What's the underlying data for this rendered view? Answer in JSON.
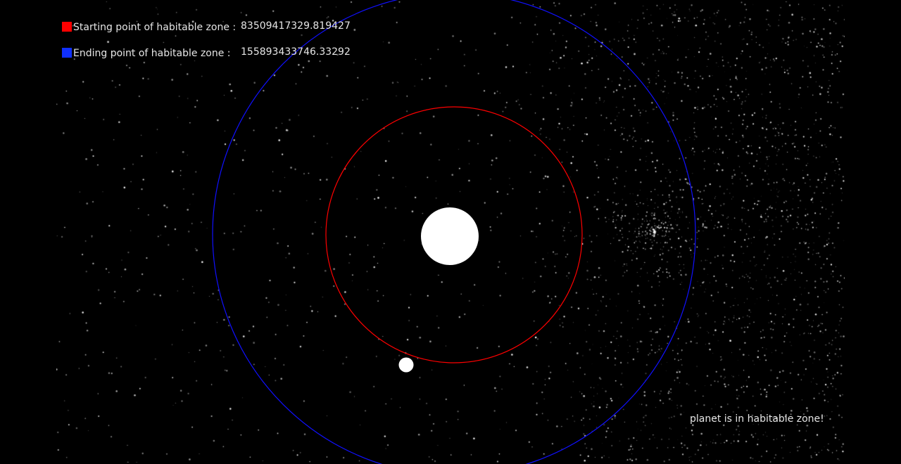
{
  "legend": {
    "start": {
      "label": "Starting point of habitable zone :",
      "value": "83509417329.819427",
      "color": "#ff0000"
    },
    "end": {
      "label": "Ending point of habitable zone :",
      "value": "155893433746.33292",
      "color": "#1030ff"
    }
  },
  "status": {
    "message": "planet is in habitable zone!"
  },
  "colors": {
    "background": "#000000",
    "star_body": "#ffffff",
    "planet_body": "#ffffff",
    "inner_orbit": "#ff0000",
    "outer_orbit": "#1010ff"
  }
}
